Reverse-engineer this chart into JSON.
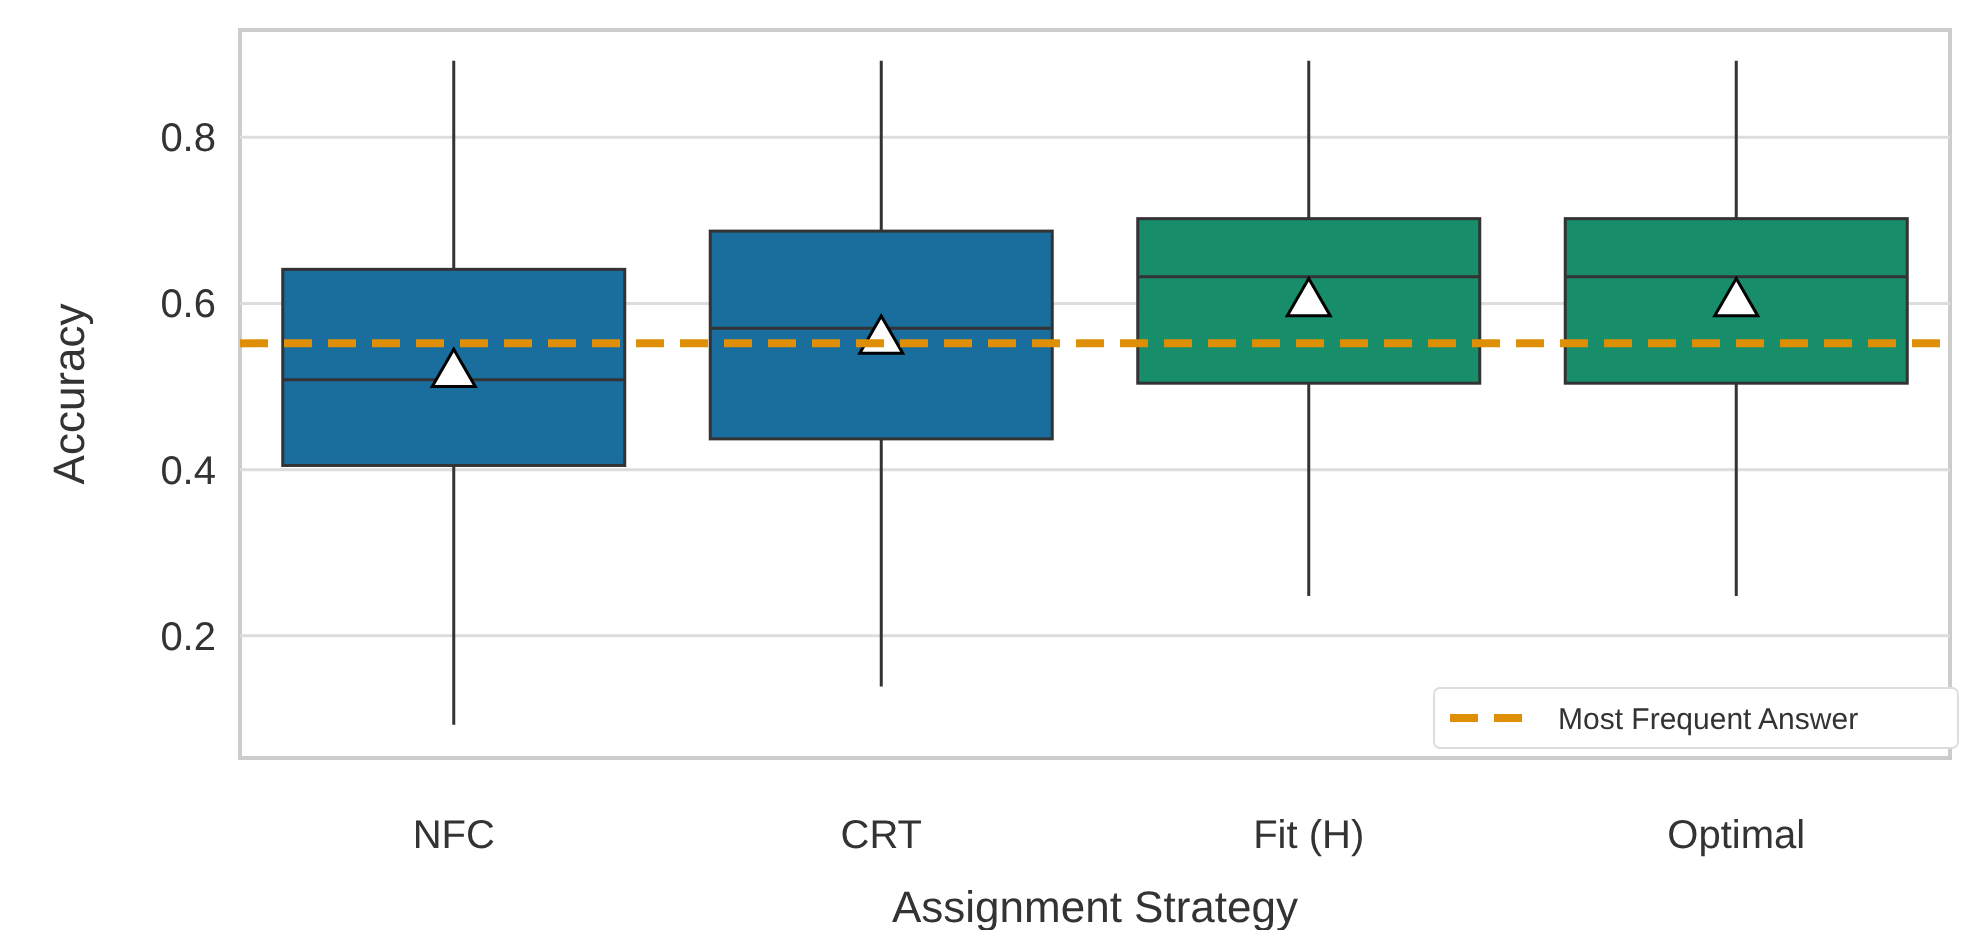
{
  "chart_data": {
    "type": "box",
    "xlabel": "Assignment Strategy",
    "ylabel": "Accuracy",
    "categories": [
      "NFC",
      "CRT",
      "Fit (H)",
      "Optimal"
    ],
    "colors": [
      "#1a6e9e",
      "#1a6e9e",
      "#178d6a",
      "#178d6a"
    ],
    "boxes": [
      {
        "low": 0.093,
        "q1": 0.405,
        "median": 0.508,
        "q3": 0.641,
        "high": 0.892,
        "mean": 0.515
      },
      {
        "low": 0.139,
        "q1": 0.437,
        "median": 0.57,
        "q3": 0.687,
        "high": 0.892,
        "mean": 0.555
      },
      {
        "low": 0.248,
        "q1": 0.504,
        "median": 0.632,
        "q3": 0.702,
        "high": 0.892,
        "mean": 0.6
      },
      {
        "low": 0.248,
        "q1": 0.504,
        "median": 0.632,
        "q3": 0.702,
        "high": 0.892,
        "mean": 0.6
      }
    ],
    "ylim": [
      0.053,
      0.929
    ],
    "yticks": [
      0.2,
      0.4,
      0.6,
      0.8
    ],
    "grid": "y",
    "marker": "triangle",
    "ref_lines": [
      {
        "axis": "y",
        "value": 0.552,
        "label": "Most Frequent Answer",
        "color": "#de8f05",
        "line_style": "dashed"
      }
    ],
    "legend": "bottom right"
  }
}
